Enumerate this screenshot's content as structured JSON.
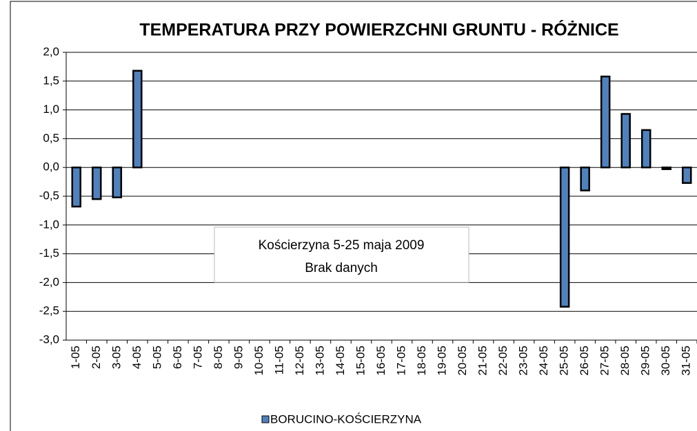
{
  "chart_data": {
    "type": "bar",
    "title": "TEMPERATURA PRZY POWIERZCHNI GRUNTU - RÓŻNICE",
    "categories": [
      "1-05",
      "2-05",
      "3-05",
      "4-05",
      "5-05",
      "6-05",
      "7-05",
      "8-05",
      "9-05",
      "10-05",
      "11-05",
      "12-05",
      "13-05",
      "14-05",
      "15-05",
      "16-05",
      "17-05",
      "18-05",
      "19-05",
      "20-05",
      "21-05",
      "22-05",
      "23-05",
      "24-05",
      "25-05",
      "26-05",
      "27-05",
      "28-05",
      "29-05",
      "30-05",
      "31-05"
    ],
    "series": [
      {
        "name": "BORUCINO-KOŚCIERZYNA",
        "color": "#4f81bd",
        "values": [
          -0.68,
          -0.55,
          -0.52,
          1.68,
          null,
          null,
          null,
          null,
          null,
          null,
          null,
          null,
          null,
          null,
          null,
          null,
          null,
          null,
          null,
          null,
          null,
          null,
          null,
          null,
          -2.42,
          -0.4,
          1.58,
          0.93,
          0.65,
          -0.03,
          -0.27
        ]
      }
    ],
    "ylim": [
      -3,
      2
    ],
    "yticks": [
      {
        "value": -3,
        "label": "-3,0"
      },
      {
        "value": -2.5,
        "label": "-2,5"
      },
      {
        "value": -2,
        "label": "-2,0"
      },
      {
        "value": -1.5,
        "label": "-1,5"
      },
      {
        "value": -1,
        "label": "-1,0"
      },
      {
        "value": -0.5,
        "label": "-0,5"
      },
      {
        "value": 0,
        "label": "0,0"
      },
      {
        "value": 0.5,
        "label": "0,5"
      },
      {
        "value": 1,
        "label": "1,0"
      },
      {
        "value": 1.5,
        "label": "1,5"
      },
      {
        "value": 2,
        "label": "2,0"
      }
    ],
    "grid": true,
    "annotation": [
      "Kościerzyna 5-25 maja 2009",
      "Brak danych"
    ]
  }
}
